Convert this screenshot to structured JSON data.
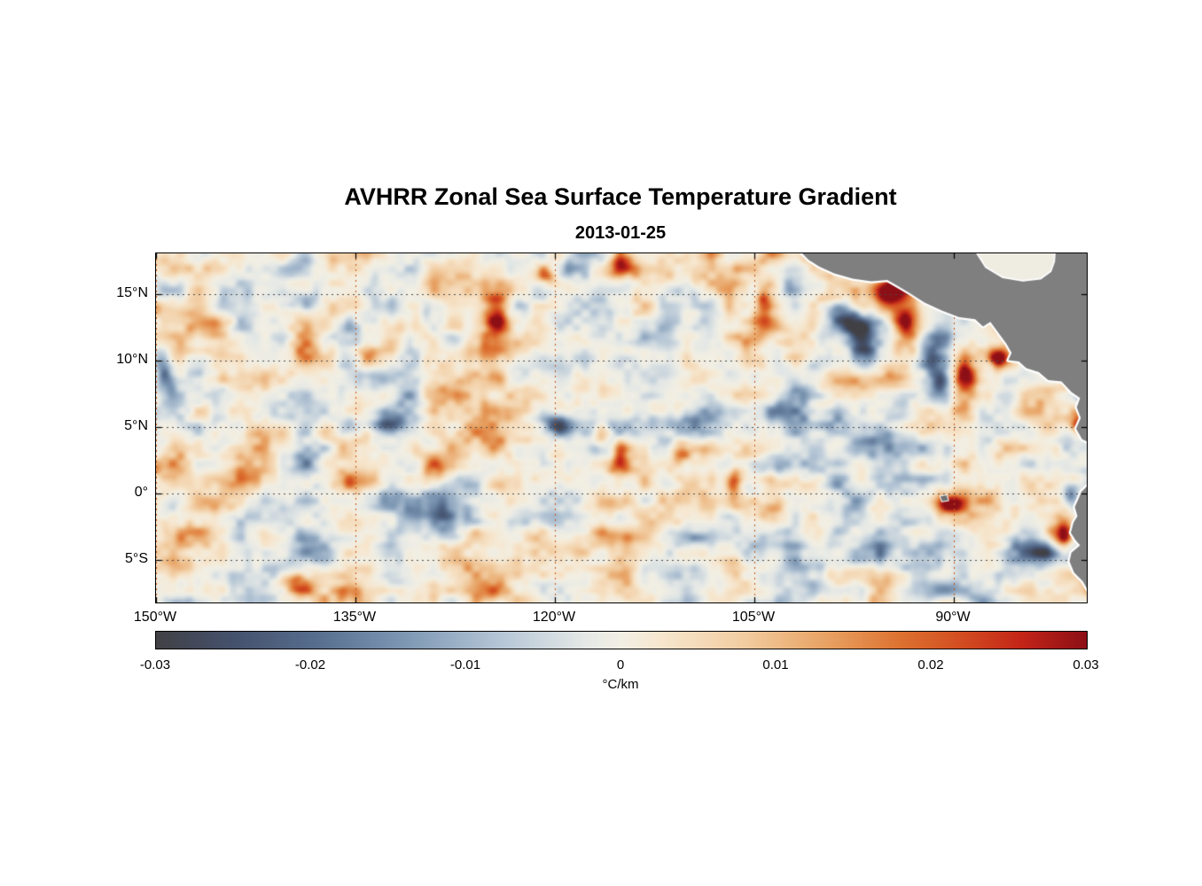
{
  "title": "AVHRR Zonal Sea Surface Temperature Gradient",
  "date": "2013-01-25",
  "axes": {
    "x_ticks": [
      {
        "lon": -150,
        "label": "150°W"
      },
      {
        "lon": -135,
        "label": "135°W"
      },
      {
        "lon": -120,
        "label": "120°W"
      },
      {
        "lon": -105,
        "label": "105°W"
      },
      {
        "lon": -90,
        "label": "90°W"
      }
    ],
    "y_ticks": [
      {
        "lat": 15,
        "label": "15°N"
      },
      {
        "lat": 10,
        "label": "10°N"
      },
      {
        "lat": 5,
        "label": "5°N"
      },
      {
        "lat": 0,
        "label": "0°"
      },
      {
        "lat": -5,
        "label": "5°S"
      }
    ]
  },
  "colorbar": {
    "units": "°C/km",
    "tick_values": [
      -0.03,
      -0.02,
      -0.01,
      0,
      0.01,
      0.02,
      0.03
    ],
    "tick_labels": [
      "-0.03",
      "-0.02",
      "-0.01",
      "0",
      "0.01",
      "0.02",
      "0.03"
    ]
  },
  "chart_data": {
    "type": "heatmap",
    "title": "AVHRR Zonal Sea Surface Temperature Gradient",
    "subtitle": "2013-01-25",
    "variable": "zonal sea surface temperature gradient (dSST/dx)",
    "units": "°C/km",
    "value_range": [
      -0.03,
      0.03
    ],
    "extent": {
      "lon_min": -150,
      "lon_max": -80,
      "lat_min": -8.2,
      "lat_max": 18.1
    },
    "grid": "dotted",
    "land_color": "#7f7f7f",
    "ocean_background": "#f2efe4",
    "grid_color_vertical": "#c25413",
    "grid_color_horizontal": "#4a4a4a",
    "colormap": [
      [
        0.0,
        "#414145"
      ],
      [
        0.08,
        "#44506b"
      ],
      [
        0.17,
        "#566d8d"
      ],
      [
        0.27,
        "#7e98b4"
      ],
      [
        0.37,
        "#b5c6d6"
      ],
      [
        0.46,
        "#e4e8e6"
      ],
      [
        0.5,
        "#f2efe4"
      ],
      [
        0.54,
        "#f7e7cf"
      ],
      [
        0.63,
        "#f2cda2"
      ],
      [
        0.72,
        "#e8a263"
      ],
      [
        0.8,
        "#dd7130"
      ],
      [
        0.87,
        "#d24a20"
      ],
      [
        0.93,
        "#c32418"
      ],
      [
        1.0,
        "#8c0f16"
      ]
    ],
    "land_polygons": {
      "central_america": [
        [
          -101.6,
          18.3
        ],
        [
          -100.9,
          17.6
        ],
        [
          -100.1,
          17.1
        ],
        [
          -99.0,
          16.6
        ],
        [
          -97.6,
          16.2
        ],
        [
          -96.2,
          16.0
        ],
        [
          -95.0,
          16.1
        ],
        [
          -94.3,
          15.7
        ],
        [
          -93.3,
          15.1
        ],
        [
          -92.2,
          14.4
        ],
        [
          -90.9,
          13.8
        ],
        [
          -89.6,
          13.3
        ],
        [
          -88.4,
          13.15
        ],
        [
          -87.8,
          12.6
        ],
        [
          -87.25,
          12.95
        ],
        [
          -86.7,
          12.2
        ],
        [
          -86.05,
          11.3
        ],
        [
          -85.65,
          10.6
        ],
        [
          -85.9,
          10.05
        ],
        [
          -85.1,
          9.95
        ],
        [
          -84.55,
          9.45
        ],
        [
          -83.6,
          9.15
        ],
        [
          -82.9,
          8.55
        ],
        [
          -81.9,
          8.45
        ],
        [
          -81.15,
          7.65
        ],
        [
          -80.5,
          7.2
        ],
        [
          -80.75,
          6.5
        ],
        [
          -80.45,
          5.7
        ],
        [
          -80.8,
          4.9
        ],
        [
          -80.35,
          4.1
        ],
        [
          -79.5,
          3.7
        ],
        [
          -79.5,
          18.3
        ]
      ],
      "caribbean_sea_gap": [
        [
          -88.35,
          18.35
        ],
        [
          -87.55,
          17.1
        ],
        [
          -86.3,
          16.35
        ],
        [
          -84.8,
          16.1
        ],
        [
          -83.5,
          16.25
        ],
        [
          -82.75,
          16.8
        ],
        [
          -82.5,
          17.5
        ],
        [
          -82.45,
          18.35
        ]
      ],
      "south_america": [
        [
          -79.5,
          0.8
        ],
        [
          -80.0,
          0.55
        ],
        [
          -80.4,
          0.15
        ],
        [
          -80.65,
          -0.45
        ],
        [
          -80.9,
          -1.0
        ],
        [
          -80.7,
          -1.7
        ],
        [
          -81.0,
          -2.2
        ],
        [
          -81.2,
          -2.95
        ],
        [
          -80.85,
          -3.5
        ],
        [
          -80.5,
          -3.9
        ],
        [
          -81.15,
          -4.45
        ],
        [
          -81.3,
          -5.1
        ],
        [
          -80.95,
          -5.95
        ],
        [
          -80.3,
          -6.6
        ],
        [
          -79.9,
          -7.3
        ],
        [
          -79.5,
          -8.4
        ]
      ],
      "galapagos": [
        [
          -91.0,
          -0.2
        ],
        [
          -90.55,
          -0.12
        ],
        [
          -90.42,
          -0.5
        ],
        [
          -90.88,
          -0.58
        ]
      ]
    },
    "notable_features": [
      {
        "lon": -94.9,
        "lat": 15.1,
        "sigma_lon": 1.4,
        "sigma_lat": 1.7,
        "value": 0.035
      },
      {
        "lon": -93.3,
        "lat": 12.4,
        "sigma_lon": 1.3,
        "sigma_lat": 2.3,
        "value": 0.034
      },
      {
        "lon": -89.3,
        "lat": 8.7,
        "sigma_lon": 1.0,
        "sigma_lat": 2.0,
        "value": 0.033
      },
      {
        "lon": -86.7,
        "lat": 10.2,
        "sigma_lon": 0.7,
        "sigma_lat": 0.8,
        "value": 0.027
      },
      {
        "lon": -98.4,
        "lat": 13.2,
        "sigma_lon": 1.5,
        "sigma_lat": 1.3,
        "value": -0.027
      },
      {
        "lon": -96.7,
        "lat": 10.8,
        "sigma_lon": 1.1,
        "sigma_lat": 1.8,
        "value": -0.025
      },
      {
        "lon": -91.7,
        "lat": 10.6,
        "sigma_lon": 1.5,
        "sigma_lat": 1.6,
        "value": -0.024
      },
      {
        "lon": -90.9,
        "lat": 7.6,
        "sigma_lon": 1.1,
        "sigma_lat": 1.1,
        "value": -0.018
      },
      {
        "lon": -104.3,
        "lat": 14.1,
        "sigma_lon": 0.8,
        "sigma_lat": 1.8,
        "value": 0.022
      },
      {
        "lon": -115.1,
        "lat": 17.1,
        "sigma_lon": 1.1,
        "sigma_lat": 1.2,
        "value": 0.024
      },
      {
        "lon": -120.5,
        "lat": 16.5,
        "sigma_lon": 0.9,
        "sigma_lat": 1.0,
        "value": 0.021
      },
      {
        "lon": -124.4,
        "lat": 13.6,
        "sigma_lon": 1.1,
        "sigma_lat": 2.2,
        "value": 0.024
      },
      {
        "lon": -134.1,
        "lat": 11.1,
        "sigma_lon": 0.8,
        "sigma_lat": 1.4,
        "value": 0.018
      },
      {
        "lon": -149.4,
        "lat": 8.7,
        "sigma_lon": 0.8,
        "sigma_lat": 1.6,
        "value": -0.027
      },
      {
        "lon": -132.5,
        "lat": 5.1,
        "sigma_lon": 1.7,
        "sigma_lat": 0.9,
        "value": -0.02
      },
      {
        "lon": -119.9,
        "lat": 5.0,
        "sigma_lon": 1.4,
        "sigma_lat": 1.1,
        "value": -0.027
      },
      {
        "lon": -116.5,
        "lat": 4.4,
        "sigma_lon": 0.7,
        "sigma_lat": 0.9,
        "value": 0.032
      },
      {
        "lon": -115.1,
        "lat": 2.5,
        "sigma_lon": 0.8,
        "sigma_lat": 1.8,
        "value": 0.023
      },
      {
        "lon": -129.1,
        "lat": 1.8,
        "sigma_lon": 0.8,
        "sigma_lat": 1.1,
        "value": 0.019
      },
      {
        "lon": -128.1,
        "lat": -2.1,
        "sigma_lon": 1.1,
        "sigma_lat": 0.9,
        "value": -0.016
      },
      {
        "lon": -106.5,
        "lat": 0.5,
        "sigma_lon": 0.6,
        "sigma_lat": 1.4,
        "value": 0.021
      },
      {
        "lon": -90.3,
        "lat": -0.9,
        "sigma_lon": 0.9,
        "sigma_lat": 0.6,
        "value": 0.024
      },
      {
        "lon": -81.9,
        "lat": -3.3,
        "sigma_lon": 0.9,
        "sigma_lat": 1.4,
        "value": 0.035
      },
      {
        "lon": -84.1,
        "lat": -4.5,
        "sigma_lon": 1.9,
        "sigma_lat": 1.1,
        "value": -0.026
      },
      {
        "lon": -81.2,
        "lat": -0.2,
        "sigma_lon": 0.6,
        "sigma_lat": 0.8,
        "value": -0.02
      },
      {
        "lon": -140.4,
        "lat": -5.7,
        "sigma_lon": 1.2,
        "sigma_lat": 0.8,
        "value": -0.015
      },
      {
        "lon": -139.7,
        "lat": -6.7,
        "sigma_lon": 0.9,
        "sigma_lat": 0.7,
        "value": 0.016
      },
      {
        "lon": -110.6,
        "lat": 3.1,
        "sigma_lon": 0.9,
        "sigma_lat": 1.1,
        "value": 0.018
      },
      {
        "lon": -80.6,
        "lat": 5.1,
        "sigma_lon": 0.7,
        "sigma_lat": 1.2,
        "value": 0.03
      },
      {
        "lon": -80.4,
        "lat": 7.9,
        "sigma_lon": 0.6,
        "sigma_lat": 1.1,
        "value": -0.028
      }
    ]
  }
}
